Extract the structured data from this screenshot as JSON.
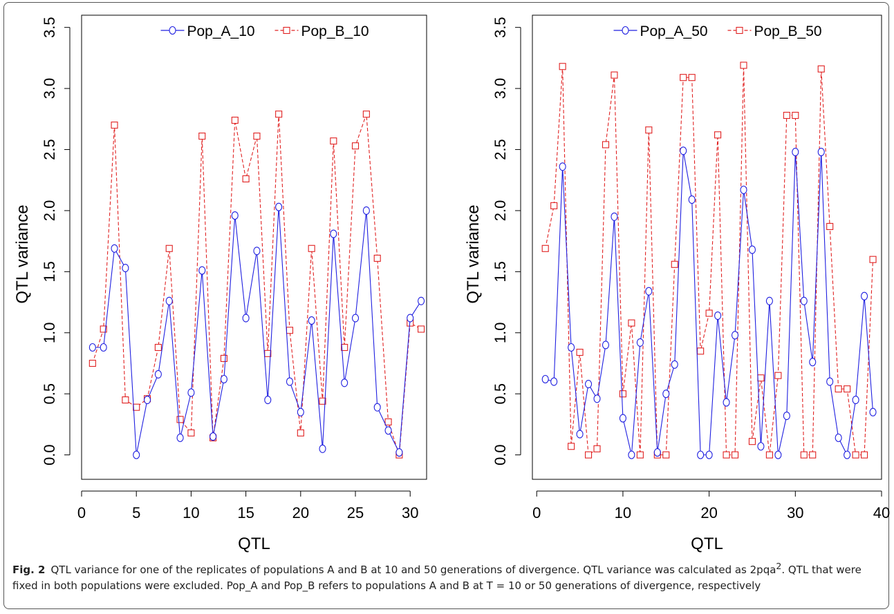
{
  "caption": {
    "label": "Fig. 2",
    "text_before_sup": "QTL variance for one of the replicates of populations A and B at 10 and 50 generations of divergence. QTL variance was calculated as 2pqa",
    "sup": "2",
    "text_after_sup": ". QTL that were fixed in both populations were excluded. Pop_A and Pop_B refers to populations A and B at T = 10 or 50 generations of divergence, respectively"
  },
  "colors": {
    "pop_a": "#1f1fe0",
    "pop_b": "#e02020"
  },
  "chart_data": [
    {
      "type": "line",
      "xlabel": "QTL",
      "ylabel": "QTL variance",
      "xlim": [
        0,
        31.5
      ],
      "ylim": [
        -0.2,
        3.6
      ],
      "xticks": [
        0,
        5,
        10,
        15,
        20,
        25,
        30
      ],
      "yticks": [
        "0.0",
        "0.5",
        "1.0",
        "1.5",
        "2.0",
        "2.5",
        "3.0",
        "3.5"
      ],
      "legend_position": "top-center",
      "x": [
        1,
        2,
        3,
        4,
        5,
        6,
        7,
        8,
        9,
        10,
        11,
        12,
        13,
        14,
        15,
        16,
        17,
        18,
        19,
        20,
        21,
        22,
        23,
        24,
        25,
        26,
        27,
        28,
        29,
        30,
        31
      ],
      "series": [
        {
          "name": "Pop_A_10",
          "marker": "circle",
          "line": "solid",
          "values": [
            0.88,
            0.88,
            1.69,
            1.53,
            0.0,
            0.45,
            0.66,
            1.26,
            0.14,
            0.51,
            1.51,
            0.15,
            0.62,
            1.96,
            1.12,
            1.67,
            0.45,
            2.03,
            0.6,
            0.35,
            1.1,
            0.05,
            1.81,
            0.59,
            1.12,
            2.0,
            0.39,
            0.2,
            0.02,
            1.12,
            1.26
          ]
        },
        {
          "name": "Pop_B_10",
          "marker": "square",
          "line": "dashed",
          "values": [
            0.75,
            1.03,
            2.7,
            0.45,
            0.39,
            0.46,
            0.88,
            1.69,
            0.29,
            0.18,
            2.61,
            0.14,
            0.79,
            2.74,
            2.26,
            2.61,
            0.83,
            2.79,
            1.02,
            0.18,
            1.69,
            0.44,
            2.57,
            0.88,
            2.53,
            2.79,
            1.61,
            0.27,
            0.0,
            1.08,
            1.03
          ]
        }
      ]
    },
    {
      "type": "line",
      "xlabel": "QTL",
      "ylabel": "QTL variance",
      "xlim": [
        -0.5,
        40
      ],
      "ylim": [
        -0.2,
        3.6
      ],
      "xticks": [
        0,
        10,
        20,
        30,
        40
      ],
      "yticks": [
        "0.0",
        "0.5",
        "1.0",
        "1.5",
        "2.0",
        "2.5",
        "3.0",
        "3.5"
      ],
      "legend_position": "top-center",
      "x": [
        1,
        2,
        3,
        4,
        5,
        6,
        7,
        8,
        9,
        10,
        11,
        12,
        13,
        14,
        15,
        16,
        17,
        18,
        19,
        20,
        21,
        22,
        23,
        24,
        25,
        26,
        27,
        28,
        29,
        30,
        31,
        32,
        33,
        34,
        35,
        36,
        37,
        38,
        39
      ],
      "series": [
        {
          "name": "Pop_A_50",
          "marker": "circle",
          "line": "solid",
          "values": [
            0.62,
            0.6,
            2.36,
            0.88,
            0.17,
            0.58,
            0.46,
            0.9,
            1.95,
            0.3,
            0.0,
            0.92,
            1.34,
            0.02,
            0.5,
            0.74,
            2.49,
            2.09,
            0.0,
            0.0,
            1.14,
            0.43,
            0.98,
            2.17,
            1.68,
            0.07,
            1.26,
            0.0,
            0.32,
            2.48,
            1.26,
            0.76,
            2.48,
            0.6,
            0.14,
            0.0,
            0.45,
            1.3,
            0.35
          ]
        },
        {
          "name": "Pop_B_50",
          "marker": "square",
          "line": "dashed",
          "values": [
            1.69,
            2.04,
            3.18,
            0.07,
            0.84,
            0.0,
            0.05,
            2.54,
            3.11,
            0.5,
            1.08,
            0.0,
            2.66,
            0.0,
            0.0,
            1.56,
            3.09,
            3.09,
            0.85,
            1.16,
            2.62,
            0.0,
            0.0,
            3.19,
            0.11,
            0.63,
            0.0,
            0.65,
            2.78,
            2.78,
            0.0,
            0.0,
            3.16,
            1.87,
            0.54,
            0.54,
            0.0,
            0.0,
            1.6
          ]
        }
      ]
    }
  ]
}
